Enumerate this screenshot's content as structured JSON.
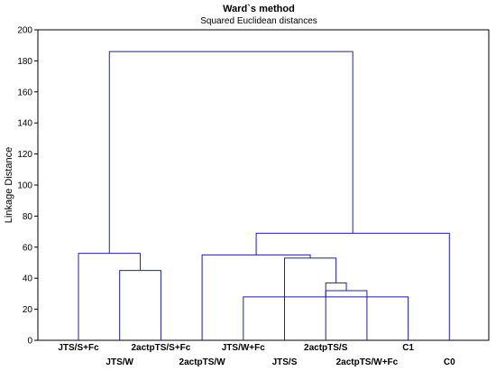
{
  "chart_data": {
    "type": "dendrogram",
    "title": "Ward`s method",
    "subtitle": "Squared Euclidean distances",
    "ylabel": "Linkage Distance",
    "ylim": [
      0,
      200
    ],
    "yticks": [
      0,
      20,
      40,
      60,
      80,
      100,
      120,
      140,
      160,
      180,
      200
    ],
    "grid": false,
    "line_color": "#1f1fa8",
    "leaves": [
      "JTS/S+Fc",
      "JTS/W",
      "2actpTS/S+Fc",
      "2actpTS/W",
      "JTS/W+Fc",
      "JTS/S",
      "2actpTS/S",
      "2actpTS/W+Fc",
      "C1",
      "C0"
    ],
    "merges": [
      {
        "left": "JTS/W+Fc",
        "right": "C1",
        "height": 28
      },
      {
        "left": "2actpTS/W+Fc",
        "right": "C[JTS/W+Fc,C1]",
        "height": 32
      },
      {
        "left": "2actpTS/S",
        "right": "C[2actpTS/W+Fc,JTS/W+Fc,C1]",
        "height": 37
      },
      {
        "left": "JTS/S",
        "right": "C[2actpTS/S,2actpTS/W+Fc,JTS/W+Fc,C1]",
        "height": 53
      },
      {
        "left": "2actpTS/W",
        "right": "C[JTS/S,2actpTS/S,2actpTS/W+Fc,JTS/W+Fc,C1]",
        "height": 55
      },
      {
        "left": "JTS/W",
        "right": "2actpTS/S+Fc",
        "height": 45
      },
      {
        "left": "JTS/S+Fc",
        "right": "C[JTS/W,2actpTS/S+Fc]",
        "height": 56
      },
      {
        "left": "C[2actpTS/W,...,C1]",
        "right": "C0",
        "height": 69
      },
      {
        "left": "C[JTS/S+Fc,JTS/W,2actpTS/S+Fc]",
        "right": "C[2actpTS/W,...,C0]",
        "height": 186
      }
    ]
  }
}
